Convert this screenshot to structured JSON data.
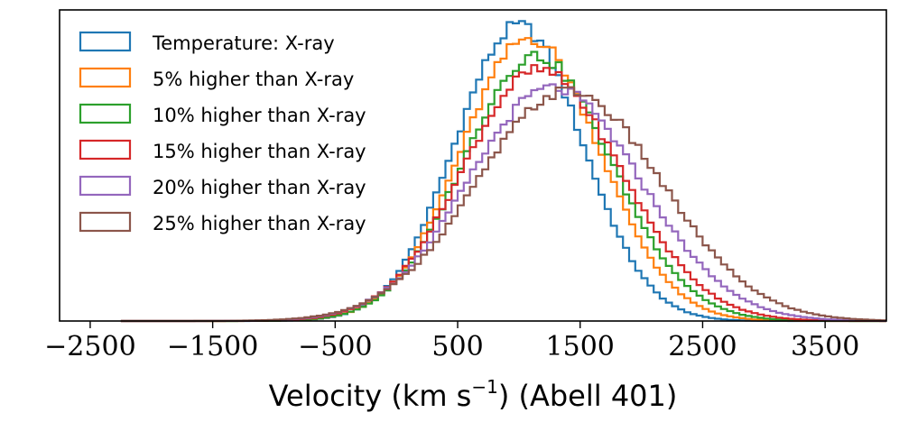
{
  "chart_data": {
    "type": "histogram",
    "title": "",
    "xlabel": "Velocity (km s",
    "xlabel_sup": "−1",
    "xlabel_suffix": ") (Abell 401)",
    "ylabel": "",
    "xlim": [
      -2750,
      4000
    ],
    "xticks": [
      -2500,
      -1500,
      -500,
      500,
      1500,
      2500,
      3500
    ],
    "xtick_labels": [
      "−2500",
      "−1500",
      "−500",
      "500",
      "1500",
      "2500",
      "3500"
    ],
    "yticks_shown": false,
    "grid": false,
    "legend_location": "top-left",
    "bin_width": 50,
    "series": [
      {
        "name": "Temperature: X-ray",
        "color": "#1f77b4",
        "mean": 1000,
        "sigma_left": 520,
        "sigma_right": 520,
        "peak": 1.0
      },
      {
        "name": "5% higher than X-ray",
        "color": "#ff7f0e",
        "mean": 1090,
        "sigma_left": 560,
        "sigma_right": 570,
        "peak": 0.96
      },
      {
        "name": "10% higher than X-ray",
        "color": "#2ca02c",
        "mean": 1130,
        "sigma_left": 580,
        "sigma_right": 620,
        "peak": 0.9
      },
      {
        "name": "15% higher than X-ray",
        "color": "#d62728",
        "mean": 1160,
        "sigma_left": 620,
        "sigma_right": 670,
        "peak": 0.85
      },
      {
        "name": "20% higher than X-ray",
        "color": "#9467bd",
        "mean": 1270,
        "sigma_left": 680,
        "sigma_right": 720,
        "peak": 0.79
      },
      {
        "name": "25% higher than X-ray",
        "color": "#8c564b",
        "mean": 1400,
        "sigma_left": 740,
        "sigma_right": 760,
        "peak": 0.78
      }
    ]
  }
}
